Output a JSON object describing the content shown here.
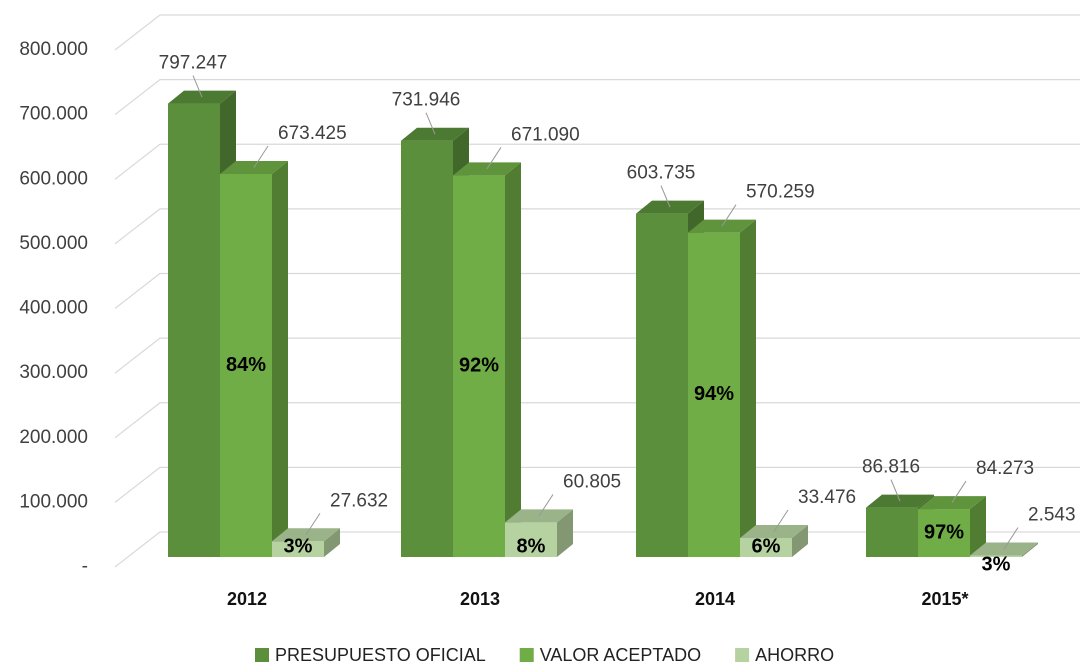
{
  "chart_data": {
    "type": "bar3d",
    "categories": [
      "2012",
      "2013",
      "2014",
      "2015*"
    ],
    "series": [
      {
        "name": "PRESUPUESTO OFICIAL",
        "color": "#5b8f3b",
        "values": [
          797247,
          731946,
          603735,
          86816
        ],
        "value_labels": [
          "797.247",
          "731.946",
          "603.735",
          "86.816"
        ]
      },
      {
        "name": "VALOR ACEPTADO",
        "color": "#70ad47",
        "values": [
          673425,
          671090,
          570259,
          84273
        ],
        "value_labels": [
          "673.425",
          "671.090",
          "570.259",
          "84.273"
        ],
        "percent_labels": [
          "84%",
          "92%",
          "94%",
          "97%"
        ]
      },
      {
        "name": "AHORRO",
        "color": "#b6d2a0",
        "values": [
          27632,
          60805,
          33476,
          2543
        ],
        "value_labels": [
          "27.632",
          "60.805",
          "33.476",
          "2.543"
        ],
        "percent_labels": [
          "3%",
          "8%",
          "6%",
          "3%"
        ]
      }
    ],
    "ylim": [
      0,
      800000
    ],
    "yticks": [
      {
        "value": 0,
        "label": "-"
      },
      {
        "value": 100000,
        "label": "100.000"
      },
      {
        "value": 200000,
        "label": "200.000"
      },
      {
        "value": 300000,
        "label": "300.000"
      },
      {
        "value": 400000,
        "label": "400.000"
      },
      {
        "value": 500000,
        "label": "500.000"
      },
      {
        "value": 600000,
        "label": "600.000"
      },
      {
        "value": 700000,
        "label": "700.000"
      },
      {
        "value": 800000,
        "label": "800.000"
      }
    ],
    "grid": true,
    "legend": "bottom"
  }
}
